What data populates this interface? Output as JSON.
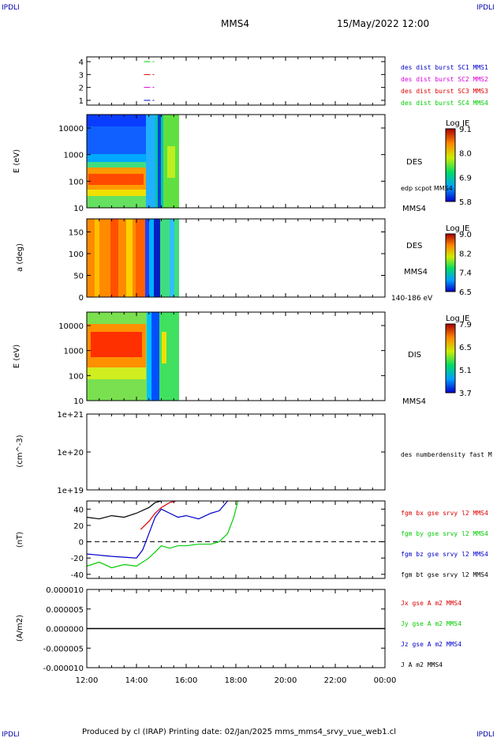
{
  "header": {
    "corner_top_left": "IPDLI",
    "corner_top_right": "IPDLI",
    "corner_bottom_left": "IPDLI",
    "corner_bottom_right": "IPDLI",
    "spacecraft": "MMS4",
    "datetime": "15/May/2022 12:00"
  },
  "footer": {
    "text": "Produced by cl (IRAP)   Printing date: 02/Jan/2025   mms_mms4_srvy_vue_web1.cl"
  },
  "colors": {
    "red": "#dd0000",
    "green": "#00cc00",
    "blue": "#0000cc",
    "magenta": "#dd00dd",
    "black": "#000000"
  },
  "chart_data": [
    {
      "type": "line",
      "id": "availability",
      "yticks": [
        "1",
        "2",
        "3",
        "4"
      ],
      "legend": [
        {
          "label": "des dist burst SC1 MMS1",
          "color": "#0000cc"
        },
        {
          "label": "des dist burst SC2 MMS2",
          "color": "#dd00dd"
        },
        {
          "label": "des dist burst SC3 MMS3",
          "color": "#dd0000"
        },
        {
          "label": "des dist burst SC4 MMS4",
          "color": "#00cc00"
        }
      ],
      "segments": [
        {
          "sc": 1,
          "start": "14:18",
          "end": "14:48",
          "color": "#0000cc"
        },
        {
          "sc": 2,
          "start": "14:18",
          "end": "14:48",
          "color": "#dd00dd"
        },
        {
          "sc": 3,
          "start": "14:18",
          "end": "14:48",
          "color": "#dd0000"
        },
        {
          "sc": 4,
          "start": "14:18",
          "end": "14:48",
          "color": "#00cc00"
        }
      ]
    },
    {
      "type": "heatmap",
      "id": "des-energy",
      "ylabel": "E (eV)",
      "yscale": "log",
      "ylim": [
        10,
        30000
      ],
      "yticks": [
        "10",
        "100",
        "1000",
        "10000"
      ],
      "data_end": "15:45",
      "side_labels": [
        "DES",
        "edp scpot MMS4",
        "MMS4"
      ],
      "colorbar": {
        "title": "Log JE",
        "ticks": [
          "9.1",
          "8.0",
          "6.9",
          "5.8"
        ],
        "min": 5.8,
        "max": 9.1
      }
    },
    {
      "type": "heatmap",
      "id": "des-pitch",
      "ylabel": "a (deg)",
      "ylim": [
        0,
        180
      ],
      "yticks": [
        "0",
        "50",
        "100",
        "150"
      ],
      "data_end": "15:45",
      "side_labels": [
        "DES",
        "MMS4",
        "140-186 eV"
      ],
      "colorbar": {
        "title": "Log JE",
        "ticks": [
          "9.0",
          "8.2",
          "7.4",
          "6.5"
        ],
        "min": 6.5,
        "max": 9.0
      }
    },
    {
      "type": "heatmap",
      "id": "dis-energy",
      "ylabel": "E (eV)",
      "yscale": "log",
      "ylim": [
        10,
        30000
      ],
      "yticks": [
        "10",
        "100",
        "1000",
        "10000"
      ],
      "data_end": "15:45",
      "side_labels": [
        "DIS",
        "MMS4"
      ],
      "colorbar": {
        "title": "Log JE",
        "ticks": [
          "7.9",
          "6.5",
          "5.1",
          "3.7"
        ],
        "min": 3.7,
        "max": 7.9
      }
    },
    {
      "type": "line",
      "id": "density",
      "ylabel": "(cm^-3)",
      "yscale": "log",
      "yticks": [
        "1e+19",
        "1e+20",
        "1e+21"
      ],
      "legend": [
        {
          "label": "des numberdensity fast M",
          "color": "#000000"
        }
      ]
    },
    {
      "type": "line",
      "id": "bfield",
      "ylabel": "(nT)",
      "ylim": [
        -45,
        50
      ],
      "yticks": [
        "-40",
        "-20",
        "0",
        "20",
        "40"
      ],
      "legend": [
        {
          "label": "fgm bx gse srvy l2 MMS4",
          "color": "#dd0000"
        },
        {
          "label": "fgm by gse srvy l2 MMS4",
          "color": "#00cc00"
        },
        {
          "label": "fgm bz gse srvy l2 MMS4",
          "color": "#0000cc"
        },
        {
          "label": "fgm bt gse srvy l2 MMS4",
          "color": "#000000"
        }
      ],
      "series": [
        {
          "name": "fgm bt gse srvy l2 MMS4",
          "color": "#000000",
          "points": [
            [
              "12:00",
              30
            ],
            [
              "12:30",
              28
            ],
            [
              "13:00",
              32
            ],
            [
              "13:30",
              30
            ],
            [
              "14:00",
              35
            ],
            [
              "14:30",
              42
            ],
            [
              "14:45",
              48
            ],
            [
              "15:00",
              50
            ]
          ]
        },
        {
          "name": "fgm bx gse srvy l2 MMS4",
          "color": "#dd0000",
          "points": [
            [
              "14:10",
              15
            ],
            [
              "14:30",
              25
            ],
            [
              "14:45",
              35
            ],
            [
              "15:00",
              42
            ],
            [
              "15:20",
              48
            ],
            [
              "15:35",
              52
            ]
          ]
        },
        {
          "name": "fgm bz gse srvy l2 MMS4",
          "color": "#0000cc",
          "points": [
            [
              "12:00",
              -15
            ],
            [
              "13:00",
              -18
            ],
            [
              "14:00",
              -20
            ],
            [
              "14:15",
              -10
            ],
            [
              "14:30",
              10
            ],
            [
              "14:45",
              30
            ],
            [
              "15:00",
              40
            ],
            [
              "15:20",
              35
            ],
            [
              "15:40",
              30
            ],
            [
              "16:00",
              32
            ],
            [
              "16:30",
              28
            ],
            [
              "17:00",
              35
            ],
            [
              "17:20",
              38
            ],
            [
              "17:40",
              50
            ]
          ]
        },
        {
          "name": "fgm by gse srvy l2 MMS4",
          "color": "#00cc00",
          "points": [
            [
              "12:00",
              -30
            ],
            [
              "12:30",
              -25
            ],
            [
              "13:00",
              -32
            ],
            [
              "13:30",
              -28
            ],
            [
              "14:00",
              -30
            ],
            [
              "14:30",
              -20
            ],
            [
              "14:50",
              -10
            ],
            [
              "15:00",
              -5
            ],
            [
              "15:20",
              -8
            ],
            [
              "15:40",
              -5
            ],
            [
              "16:00",
              -5
            ],
            [
              "16:30",
              -3
            ],
            [
              "17:00",
              -3
            ],
            [
              "17:20",
              0
            ],
            [
              "17:40",
              10
            ],
            [
              "17:55",
              30
            ],
            [
              "18:05",
              50
            ]
          ]
        }
      ]
    },
    {
      "type": "line",
      "id": "current",
      "ylabel": "(A/m2)",
      "ylim": [
        -1e-05,
        1e-05
      ],
      "yticks": [
        "-0.000010",
        "-0.000005",
        "0.000000",
        "0.000005",
        "0.000010"
      ],
      "legend": [
        {
          "label": "Jx gse A m2 MMS4",
          "color": "#dd0000"
        },
        {
          "label": "Jy gse A m2 MMS4",
          "color": "#00cc00"
        },
        {
          "label": "Jz gse A m2 MMS4",
          "color": "#0000cc"
        },
        {
          "label": "J A m2 MMS4",
          "color": "#000000"
        }
      ]
    }
  ],
  "xaxis": {
    "ticks": [
      "12:00",
      "14:00",
      "16:00",
      "18:00",
      "20:00",
      "22:00",
      "00:00"
    ]
  }
}
